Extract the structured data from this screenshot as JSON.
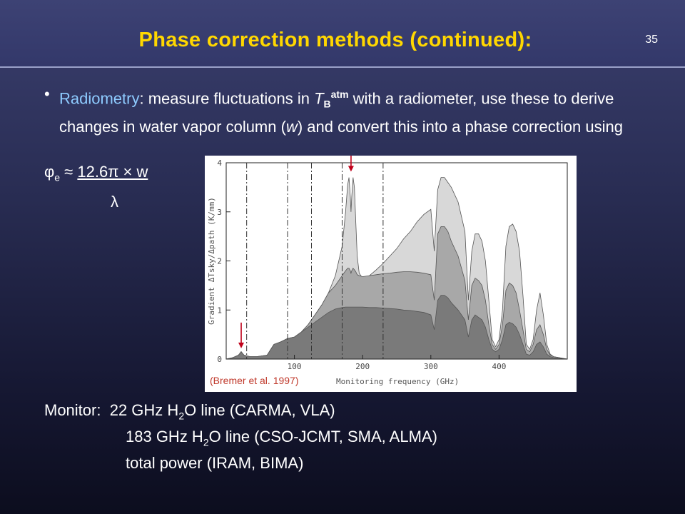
{
  "slide": {
    "title": "Phase correction methods (continued):",
    "number": "35"
  },
  "bullet": {
    "label": "Radiometry",
    "t1": ": measure fluctuations in ",
    "tb_sym": "T",
    "tb_sub": "B",
    "tb_sup": "atm",
    "t2": " with a radiometer, use these to derive changes in water vapor column (",
    "w": "w",
    "t3": ") and convert this into a phase correction using"
  },
  "formula": {
    "phi": "φ",
    "phi_sub": "e",
    "approx": " ≈ ",
    "numerator": "12.6π × w",
    "denominator": "λ"
  },
  "figure": {
    "citation": "(Bremer et al. 1997)",
    "chart_data": {
      "type": "area",
      "xlabel": "Monitoring frequency (GHz)",
      "ylabel": "Gradient ΔTsky/Δpath (K/mm)",
      "xlim": [
        0,
        500
      ],
      "ylim": [
        0,
        4
      ],
      "x_ticks": [
        "100",
        "200",
        "300",
        "400"
      ],
      "y_ticks": [
        "0",
        "1",
        "2",
        "3",
        "4"
      ],
      "markers_ghz": [
        22,
        183
      ],
      "dashed_lines_ghz": [
        30,
        90,
        125,
        170,
        230
      ],
      "series": [
        {
          "color": "#d8d8d8",
          "x": [
            0,
            10,
            18,
            22,
            26,
            35,
            45,
            50,
            60,
            70,
            80,
            90,
            100,
            110,
            120,
            130,
            140,
            150,
            160,
            170,
            175,
            178,
            180,
            182,
            183,
            184,
            186,
            188,
            190,
            192,
            195,
            200,
            210,
            220,
            230,
            240,
            250,
            260,
            270,
            280,
            290,
            300,
            305,
            310,
            315,
            320,
            325,
            330,
            340,
            350,
            355,
            360,
            365,
            370,
            375,
            380,
            385,
            390,
            395,
            400,
            405,
            410,
            415,
            420,
            425,
            430,
            435,
            440,
            445,
            450,
            455,
            460,
            465,
            470,
            475,
            480,
            500
          ],
          "values": [
            0,
            0.03,
            0.08,
            0.15,
            0.08,
            0.05,
            0.05,
            0.06,
            0.08,
            0.3,
            0.35,
            0.42,
            0.45,
            0.55,
            0.7,
            0.9,
            1.1,
            1.35,
            1.7,
            2.3,
            3.0,
            3.55,
            3.7,
            3.3,
            3.0,
            3.3,
            3.7,
            3.5,
            2.8,
            2.1,
            1.75,
            1.65,
            1.7,
            1.82,
            1.95,
            2.1,
            2.25,
            2.45,
            2.6,
            2.8,
            2.95,
            3.05,
            2.2,
            3.45,
            3.7,
            3.7,
            3.6,
            3.5,
            3.2,
            2.6,
            1.2,
            2.2,
            2.55,
            2.55,
            2.4,
            2.0,
            1.2,
            0.4,
            0.25,
            0.4,
            1.0,
            2.3,
            2.7,
            2.75,
            2.6,
            2.2,
            1.3,
            0.3,
            0.2,
            0.4,
            1.0,
            1.35,
            0.9,
            0.3,
            0.1,
            0.05,
            0
          ]
        },
        {
          "color": "#a8a8a8",
          "x": [
            0,
            10,
            18,
            22,
            26,
            35,
            45,
            50,
            60,
            70,
            80,
            90,
            100,
            110,
            120,
            130,
            140,
            150,
            160,
            170,
            175,
            178,
            180,
            182,
            183,
            184,
            186,
            188,
            190,
            192,
            195,
            200,
            210,
            220,
            230,
            240,
            250,
            260,
            270,
            280,
            290,
            300,
            305,
            310,
            315,
            320,
            325,
            330,
            340,
            350,
            355,
            360,
            365,
            370,
            375,
            380,
            385,
            390,
            395,
            400,
            405,
            410,
            415,
            420,
            425,
            430,
            435,
            440,
            445,
            450,
            455,
            460,
            465,
            470,
            475,
            480,
            500
          ],
          "values": [
            0,
            0.03,
            0.08,
            0.15,
            0.08,
            0.05,
            0.05,
            0.06,
            0.08,
            0.3,
            0.35,
            0.42,
            0.45,
            0.55,
            0.7,
            0.9,
            1.1,
            1.35,
            1.5,
            1.7,
            1.8,
            1.85,
            1.85,
            1.8,
            1.75,
            1.8,
            1.85,
            1.82,
            1.78,
            1.72,
            1.7,
            1.68,
            1.7,
            1.72,
            1.74,
            1.75,
            1.77,
            1.78,
            1.78,
            1.77,
            1.75,
            1.72,
            1.2,
            2.55,
            2.7,
            2.7,
            2.6,
            2.4,
            2.1,
            1.6,
            0.8,
            1.5,
            1.65,
            1.6,
            1.5,
            1.2,
            0.7,
            0.3,
            0.2,
            0.3,
            0.7,
            1.4,
            1.55,
            1.5,
            1.35,
            1.0,
            0.6,
            0.2,
            0.15,
            0.3,
            0.6,
            0.7,
            0.5,
            0.2,
            0.08,
            0.05,
            0
          ]
        },
        {
          "color": "#7a7a7a",
          "x": [
            0,
            10,
            18,
            22,
            26,
            35,
            45,
            50,
            60,
            70,
            80,
            90,
            100,
            110,
            120,
            130,
            140,
            150,
            160,
            170,
            175,
            178,
            180,
            182,
            183,
            184,
            186,
            188,
            190,
            192,
            195,
            200,
            210,
            220,
            230,
            240,
            250,
            260,
            270,
            280,
            290,
            300,
            305,
            310,
            315,
            320,
            325,
            330,
            340,
            350,
            355,
            360,
            365,
            370,
            375,
            380,
            385,
            390,
            395,
            400,
            405,
            410,
            415,
            420,
            425,
            430,
            435,
            440,
            445,
            450,
            455,
            460,
            465,
            470,
            475,
            480,
            500
          ],
          "values": [
            0,
            0.03,
            0.08,
            0.15,
            0.08,
            0.05,
            0.05,
            0.06,
            0.08,
            0.3,
            0.35,
            0.42,
            0.45,
            0.55,
            0.65,
            0.75,
            0.85,
            0.95,
            1.02,
            1.05,
            1.06,
            1.06,
            1.06,
            1.06,
            1.06,
            1.06,
            1.06,
            1.06,
            1.06,
            1.06,
            1.06,
            1.06,
            1.05,
            1.05,
            1.04,
            1.03,
            1.02,
            1.0,
            0.99,
            0.97,
            0.95,
            0.9,
            0.6,
            1.2,
            1.3,
            1.3,
            1.25,
            1.15,
            1.0,
            0.8,
            0.45,
            0.8,
            0.9,
            0.85,
            0.8,
            0.65,
            0.4,
            0.2,
            0.15,
            0.2,
            0.4,
            0.7,
            0.75,
            0.72,
            0.65,
            0.5,
            0.3,
            0.1,
            0.08,
            0.15,
            0.3,
            0.35,
            0.25,
            0.1,
            0.05,
            0.03,
            0
          ]
        }
      ]
    }
  },
  "monitor": {
    "label": "Monitor:",
    "l1a": "22 GHz H",
    "l1_sub": "2",
    "l1b": "O line (CARMA, VLA)",
    "l2a": "183 GHz H",
    "l2_sub": "2",
    "l2b": "O line (CSO-JCMT, SMA, ALMA)",
    "l3": "total power (IRAM, BIMA)"
  }
}
